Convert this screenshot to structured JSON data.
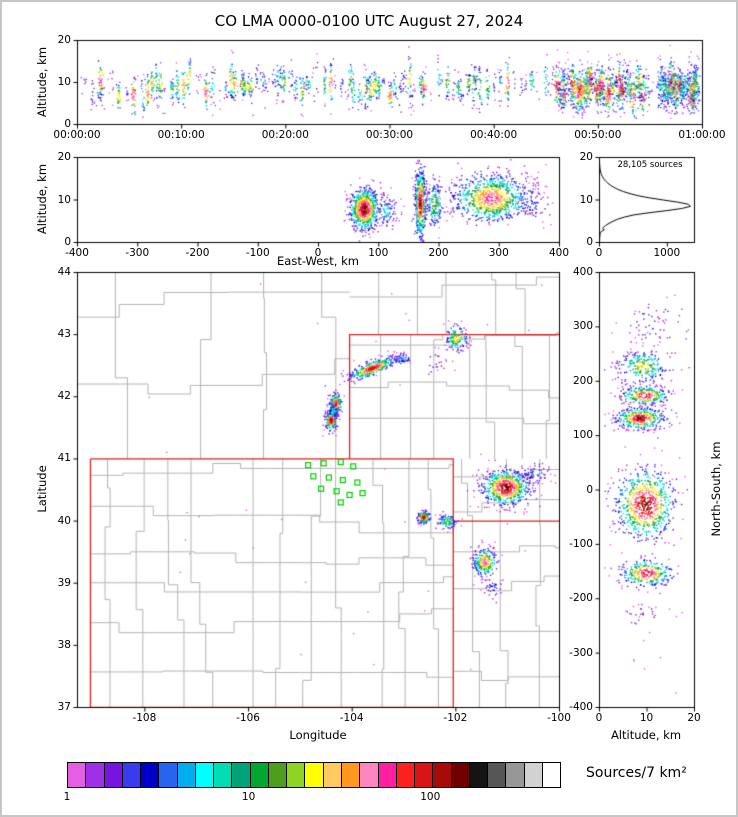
{
  "title": "CO LMA 0000-0100 UTC August 27, 2024",
  "colors": {
    "state_border": "#dd2020",
    "county": "#b4b4b4",
    "station": "#00cc00",
    "curve": "#000000"
  },
  "panels": {
    "time_height": {
      "ylabel": "Altitude, km",
      "xlim": [
        0,
        3600
      ],
      "ylim": [
        0,
        20
      ],
      "xticks": [
        "00:00:00",
        "00:10:00",
        "00:20:00",
        "00:30:00",
        "00:40:00",
        "00:50:00",
        "01:00:00"
      ],
      "xtick_values": [
        0,
        600,
        1200,
        1800,
        2400,
        3000,
        3600
      ],
      "yticks": [
        "0",
        "10",
        "20"
      ],
      "ytick_values": [
        0,
        10,
        20
      ]
    },
    "ew_height": {
      "xlabel": "East-West, km",
      "ylabel": "Altitude, km",
      "xlim": [
        -400,
        400
      ],
      "ylim": [
        0,
        20
      ],
      "xticks": [
        "-400",
        "-300",
        "-200",
        "-100",
        "0",
        "100",
        "200",
        "300",
        "400"
      ],
      "xtick_values": [
        -400,
        -300,
        -200,
        -100,
        0,
        100,
        200,
        300,
        400
      ],
      "yticks": [
        "0",
        "10",
        "20"
      ],
      "ytick_values": [
        0,
        10,
        20
      ]
    },
    "alt_histogram": {
      "annotation": "28,105 sources",
      "xlim": [
        0,
        1400
      ],
      "ylim": [
        0,
        20
      ],
      "xticks": [
        "0",
        "1000"
      ],
      "xtick_values": [
        0,
        1000
      ],
      "yticks": [
        "0",
        "10",
        "20"
      ],
      "ytick_values": [
        0,
        10,
        20
      ]
    },
    "plan_view": {
      "xlabel": "Longitude",
      "ylabel": "Latitude",
      "xlim": [
        -109.3,
        -100
      ],
      "ylim": [
        37,
        44
      ],
      "xticks": [
        "-108",
        "-106",
        "-104",
        "-102",
        "-100"
      ],
      "xtick_values": [
        -108,
        -106,
        -104,
        -102,
        -100
      ],
      "yticks": [
        "37",
        "38",
        "39",
        "40",
        "41",
        "42",
        "43",
        "44"
      ],
      "ytick_values": [
        37,
        38,
        39,
        40,
        41,
        42,
        43,
        44
      ]
    },
    "ns_alt": {
      "xlabel": "Altitude, km",
      "ylabel": "North-South, km",
      "xlim": [
        0,
        20
      ],
      "ylim": [
        -400,
        400
      ],
      "xticks": [
        "0",
        "10",
        "20"
      ],
      "xtick_values": [
        0,
        10,
        20
      ],
      "yticks": [
        "400",
        "300",
        "200",
        "100",
        "0",
        "-100",
        "-200",
        "-300",
        "-400"
      ],
      "ytick_values": [
        400,
        300,
        200,
        100,
        0,
        -100,
        -200,
        -300,
        -400
      ]
    }
  },
  "colorbar": {
    "label": "Sources/7 km²",
    "ticks": [
      "1",
      "10",
      "100"
    ],
    "segments": [
      "#E45FE4",
      "#A02FE8",
      "#7714E0",
      "#3A3AEE",
      "#0000C8",
      "#2565F0",
      "#00AEF0",
      "#00FFFF",
      "#00DCB4",
      "#00A478",
      "#00A830",
      "#4E9E1E",
      "#8FD424",
      "#FFFF00",
      "#FFCB5E",
      "#FF981C",
      "#FF85C2",
      "#FF1FA3",
      "#FF2020",
      "#D81414",
      "#A80A0A",
      "#6E0000",
      "#141414",
      "#565656",
      "#979797",
      "#D2D2D2",
      "#FFFFFF"
    ]
  },
  "chart_data": [
    {
      "panel": "time_height",
      "type": "scatter",
      "desc": "VHF lightning source altitude vs time, point color = source density",
      "imax": 19,
      "bands": [
        {
          "t": [
            30,
            2760
          ],
          "dt": [
            8,
            45
          ],
          "nmin": 3,
          "nmax": 40,
          "wref": 45,
          "alt": [
            6.5,
            11.5
          ],
          "sz": [
            1.2,
            3.0
          ],
          "tsig": 6
        },
        {
          "t": [
            2760,
            3270
          ],
          "dt": [
            4,
            16
          ],
          "nmin": 8,
          "nmax": 55,
          "wref": 50,
          "alt": [
            6.5,
            11.0
          ],
          "sz": [
            1.8,
            3.0
          ],
          "tsig": 7
        },
        {
          "t": [
            3270,
            3345
          ],
          "dt": [
            14,
            40
          ],
          "nmin": 2,
          "nmax": 8,
          "wref": 60,
          "alt": [
            7.0,
            10.0
          ],
          "sz": [
            1.5,
            2.5
          ],
          "tsig": 5
        },
        {
          "t": [
            3345,
            3580
          ],
          "dt": [
            3,
            9
          ],
          "nmin": 12,
          "nmax": 50,
          "wref": 48,
          "alt": [
            6.5,
            10.5
          ],
          "sz": [
            1.8,
            2.8
          ],
          "tsig": 6
        }
      ]
    },
    {
      "panel": "ew_height",
      "type": "scatter",
      "clusters": [
        {
          "cx": 75,
          "cy": 8,
          "sx": 13,
          "sy": 2.6,
          "n": 650,
          "imax": 21
        },
        {
          "cx": 112,
          "cy": 7.5,
          "sx": 10,
          "sy": 2.0,
          "n": 80,
          "imax": 7
        },
        {
          "cx": 168,
          "cy": 9.5,
          "sx": 4.5,
          "sy": 4.2,
          "n": 480,
          "imax": 21
        },
        {
          "cx": 192,
          "cy": 9,
          "sx": 7,
          "sy": 2.8,
          "n": 170,
          "imax": 12
        },
        {
          "cx": 285,
          "cy": 10.5,
          "sx": 34,
          "sy": 3.0,
          "n": 850,
          "imax": 17,
          "floor": {
            "x0": 230,
            "a": 3.2,
            "k": 0.03
          }
        },
        {
          "cx": 355,
          "cy": 9.5,
          "sx": 16,
          "sy": 2.6,
          "n": 60,
          "imax": 4
        }
      ],
      "sparse": {
        "n": 22,
        "x": [
          40,
          400
        ],
        "y": [
          4,
          15
        ]
      }
    },
    {
      "panel": "alt_histogram",
      "type": "line",
      "series": "source count per altitude bin",
      "points_alt_count": [
        [
          0,
          0
        ],
        [
          1,
          3
        ],
        [
          1.5,
          5
        ],
        [
          2,
          8
        ],
        [
          2.3,
          8
        ],
        [
          2.6,
          30
        ],
        [
          3,
          70
        ],
        [
          3.3,
          45
        ],
        [
          3.6,
          60
        ],
        [
          4,
          90
        ],
        [
          4.5,
          140
        ],
        [
          5,
          200
        ],
        [
          5.5,
          270
        ],
        [
          6,
          370
        ],
        [
          6.5,
          510
        ],
        [
          7,
          730
        ],
        [
          7.5,
          990
        ],
        [
          8,
          1210
        ],
        [
          8.5,
          1340
        ],
        [
          9,
          1310
        ],
        [
          9.5,
          1150
        ],
        [
          10,
          940
        ],
        [
          10.5,
          740
        ],
        [
          11,
          570
        ],
        [
          11.5,
          450
        ],
        [
          12,
          350
        ],
        [
          12.5,
          270
        ],
        [
          13,
          210
        ],
        [
          13.5,
          160
        ],
        [
          14,
          120
        ],
        [
          14.5,
          88
        ],
        [
          15,
          62
        ],
        [
          15.5,
          43
        ],
        [
          16,
          29
        ],
        [
          16.5,
          19
        ],
        [
          17,
          12
        ],
        [
          17.5,
          7
        ],
        [
          18,
          4
        ],
        [
          18.5,
          2
        ],
        [
          19,
          1
        ],
        [
          19.5,
          0
        ]
      ]
    },
    {
      "panel": "plan_view",
      "type": "scatter",
      "state_borders": [
        [
          [
            -109.05,
            41
          ],
          [
            -102.05,
            41
          ],
          [
            -102.05,
            37
          ],
          [
            -109.05,
            37
          ],
          [
            -109.05,
            41
          ]
        ],
        [
          [
            -104.05,
            41
          ],
          [
            -104.05,
            43
          ],
          [
            -100.0,
            43
          ]
        ],
        [
          [
            -102.05,
            40
          ],
          [
            -100.0,
            40
          ]
        ]
      ],
      "county_regions": [
        {
          "lon": [
            -109.05,
            -102.05
          ],
          "lat": [
            37,
            41
          ],
          "cell": 0.62
        },
        {
          "lon": [
            -104.05,
            -100.0
          ],
          "lat": [
            41,
            43
          ],
          "cell": 0.6
        },
        {
          "lon": [
            -102.05,
            -100.0
          ],
          "lat": [
            37,
            41
          ],
          "cell": 0.55
        },
        {
          "lon": [
            -109.3,
            -104.05
          ],
          "lat": [
            41,
            44
          ],
          "cell": 1.1
        },
        {
          "lon": [
            -104.05,
            -100.0
          ],
          "lat": [
            43,
            44
          ],
          "cell": 0.75
        }
      ],
      "stations": [
        [
          -104.85,
          40.9
        ],
        [
          -104.55,
          40.93
        ],
        [
          -104.22,
          40.95
        ],
        [
          -103.98,
          40.88
        ],
        [
          -104.75,
          40.72
        ],
        [
          -104.45,
          40.7
        ],
        [
          -104.18,
          40.66
        ],
        [
          -103.9,
          40.62
        ],
        [
          -104.6,
          40.52
        ],
        [
          -104.3,
          40.48
        ],
        [
          -104.05,
          40.42
        ],
        [
          -103.8,
          40.45
        ],
        [
          -104.22,
          40.3
        ]
      ],
      "clusters": [
        {
          "cx": -104.42,
          "cy": 41.63,
          "sx": 0.055,
          "sy": 0.085,
          "n": 240,
          "imax": 21
        },
        {
          "cx": -104.33,
          "cy": 41.9,
          "sx": 0.06,
          "sy": 0.08,
          "n": 210,
          "imax": 20
        },
        {
          "cx": -104.38,
          "cy": 41.77,
          "sx": 0.045,
          "sy": 0.07,
          "n": 60,
          "imax": 8
        },
        {
          "cx": -103.62,
          "cy": 42.47,
          "sx": 0.24,
          "sy": 0.055,
          "rot": 18,
          "n": 380,
          "imax": 20
        },
        {
          "cx": -103.05,
          "cy": 42.62,
          "sx": 0.1,
          "sy": 0.05,
          "n": 60,
          "imax": 6
        },
        {
          "cx": -102.0,
          "cy": 42.95,
          "sx": 0.11,
          "sy": 0.1,
          "n": 140,
          "imax": 14
        },
        {
          "cx": -102.35,
          "cy": 42.55,
          "sx": 0.16,
          "sy": 0.12,
          "n": 22,
          "imax": 2
        },
        {
          "cx": -101.05,
          "cy": 40.55,
          "sx": 0.24,
          "sy": 0.15,
          "n": 620,
          "imax": 21
        },
        {
          "cx": -100.5,
          "cy": 40.78,
          "sx": 0.17,
          "sy": 0.1,
          "n": 70,
          "imax": 5
        },
        {
          "cx": -102.63,
          "cy": 40.07,
          "sx": 0.06,
          "sy": 0.05,
          "n": 180,
          "imax": 21
        },
        {
          "cx": -102.18,
          "cy": 40.0,
          "sx": 0.09,
          "sy": 0.06,
          "n": 100,
          "imax": 12
        },
        {
          "cx": -101.45,
          "cy": 39.35,
          "sx": 0.12,
          "sy": 0.12,
          "n": 240,
          "imax": 17
        },
        {
          "cx": -101.3,
          "cy": 38.95,
          "sx": 0.1,
          "sy": 0.1,
          "n": 40,
          "imax": 4
        }
      ],
      "sparse": {
        "n": 34,
        "x": [
          -108.6,
          -100.05
        ],
        "y": [
          37.15,
          43.9
        ]
      }
    },
    {
      "panel": "ns_alt",
      "type": "scatter",
      "clusters": [
        {
          "cx": 11,
          "cy": 305,
          "sx": 3.0,
          "sy": 22,
          "n": 60,
          "imax": 3
        },
        {
          "cx": 9,
          "cy": 228,
          "sx": 2.8,
          "sy": 16,
          "n": 230,
          "imax": 13
        },
        {
          "cx": 9.5,
          "cy": 175,
          "sx": 2.6,
          "sy": 9,
          "n": 260,
          "imax": 19
        },
        {
          "cx": 8.5,
          "cy": 133,
          "sx": 2.6,
          "sy": 10,
          "n": 380,
          "imax": 21
        },
        {
          "cx": 9.5,
          "cy": -25,
          "sx": 3.2,
          "sy": 34,
          "n": 700,
          "imax": 21
        },
        {
          "cx": 9.8,
          "cy": -152,
          "sx": 2.8,
          "sy": 13,
          "n": 300,
          "imax": 19
        },
        {
          "cx": 9,
          "cy": -228,
          "sx": 2.4,
          "sy": 12,
          "n": 26,
          "imax": 2
        }
      ],
      "sparse": {
        "n": 30,
        "x": [
          2,
          18
        ],
        "y": [
          -380,
          380
        ]
      }
    }
  ]
}
